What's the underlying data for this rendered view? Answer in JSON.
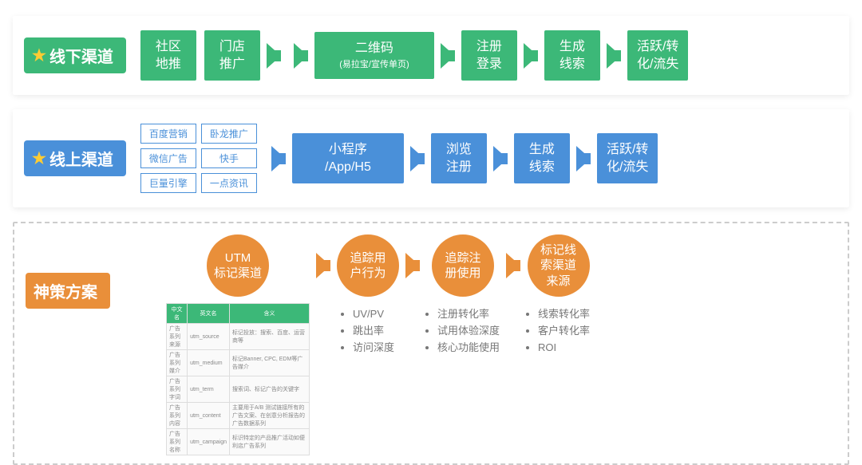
{
  "colors": {
    "green": "#3cb878",
    "blue": "#4a90d9",
    "orange": "#e98f3a",
    "star": "#ffcc33",
    "text_muted": "#777777",
    "border_dashed": "#cccccc"
  },
  "offline": {
    "label": "线下渠道",
    "steps": [
      {
        "lines": [
          "社区",
          "地推"
        ]
      },
      {
        "lines": [
          "门店",
          "推广"
        ]
      },
      {
        "lines": [
          "二维码"
        ],
        "sub": "(易拉宝/宣传单页)"
      },
      {
        "lines": [
          "注册",
          "登录"
        ]
      },
      {
        "lines": [
          "生成",
          "线索"
        ]
      },
      {
        "lines": [
          "活跃/转",
          "化/流失"
        ]
      }
    ]
  },
  "online": {
    "label": "线上渠道",
    "sources": [
      [
        "百度营销",
        "卧龙推广"
      ],
      [
        "微信广告",
        "快手"
      ],
      [
        "巨量引擎",
        "一点资讯"
      ]
    ],
    "steps": [
      {
        "lines": [
          "小程序",
          "/App/H5"
        ]
      },
      {
        "lines": [
          "浏览",
          "注册"
        ]
      },
      {
        "lines": [
          "生成",
          "线索"
        ]
      },
      {
        "lines": [
          "活跃/转",
          "化/流失"
        ]
      }
    ]
  },
  "plan": {
    "label": "神策方案",
    "utm_table": {
      "headers": [
        "中文名",
        "英文名",
        "含义"
      ],
      "rows": [
        [
          "广告系列来源",
          "utm_source",
          "标记投放：搜索、百度、运营商等"
        ],
        [
          "广告系列媒介",
          "utm_medium",
          "标记Banner, CPC, EDM等广告媒介"
        ],
        [
          "广告系列字词",
          "utm_term",
          "搜索词、标记广告的关键字"
        ],
        [
          "广告系列内容",
          "utm_content",
          "主要用于A/B 测试链接所有的广告文案、在创意分析报告的广告数据系列"
        ],
        [
          "广告系列名称",
          "utm_campaign",
          "标识特定的产品推广活动如便利店广告系列"
        ]
      ]
    },
    "circles": [
      {
        "text": "UTM\n标记渠道",
        "bullets": null,
        "has_table": true
      },
      {
        "text": "追踪用\n户行为",
        "bullets": [
          "UV/PV",
          "跳出率",
          "访问深度"
        ]
      },
      {
        "text": "追踪注\n册使用",
        "bullets": [
          "注册转化率",
          "试用体验深度",
          "核心功能使用"
        ]
      },
      {
        "text": "标记线\n索渠道\n来源",
        "bullets": [
          "线索转化率",
          "客户转化率",
          "ROI"
        ]
      }
    ]
  }
}
